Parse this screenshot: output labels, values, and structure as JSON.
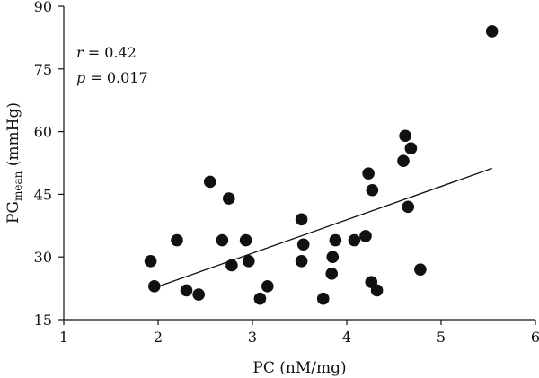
{
  "chart_data": {
    "type": "scatter",
    "xlabel": "PC (nM/mg)",
    "ylabel_main": "PG",
    "ylabel_sub": "mean",
    "ylabel_unit": " (mmHg)",
    "xlim": [
      1,
      6
    ],
    "ylim": [
      15,
      90
    ],
    "xticks": [
      1,
      2,
      3,
      4,
      5,
      6
    ],
    "yticks": [
      15,
      30,
      45,
      60,
      75,
      90
    ],
    "grid": false,
    "annotations": {
      "r_var": "r",
      "r_text": " = 0.42",
      "p_var": "p",
      "p_text": " = 0.017"
    },
    "points": [
      {
        "x": 1.92,
        "y": 29
      },
      {
        "x": 1.96,
        "y": 23
      },
      {
        "x": 2.2,
        "y": 34
      },
      {
        "x": 2.3,
        "y": 22
      },
      {
        "x": 2.43,
        "y": 21
      },
      {
        "x": 2.55,
        "y": 48
      },
      {
        "x": 2.68,
        "y": 34
      },
      {
        "x": 2.75,
        "y": 44
      },
      {
        "x": 2.78,
        "y": 28
      },
      {
        "x": 2.93,
        "y": 34
      },
      {
        "x": 2.96,
        "y": 29
      },
      {
        "x": 3.08,
        "y": 20
      },
      {
        "x": 3.16,
        "y": 23
      },
      {
        "x": 3.52,
        "y": 39
      },
      {
        "x": 3.52,
        "y": 29
      },
      {
        "x": 3.54,
        "y": 33
      },
      {
        "x": 3.75,
        "y": 20
      },
      {
        "x": 3.84,
        "y": 26
      },
      {
        "x": 3.85,
        "y": 30
      },
      {
        "x": 3.88,
        "y": 34
      },
      {
        "x": 4.08,
        "y": 34
      },
      {
        "x": 4.2,
        "y": 35
      },
      {
        "x": 4.23,
        "y": 50
      },
      {
        "x": 4.26,
        "y": 24
      },
      {
        "x": 4.27,
        "y": 46
      },
      {
        "x": 4.32,
        "y": 22
      },
      {
        "x": 4.6,
        "y": 53
      },
      {
        "x": 4.62,
        "y": 59
      },
      {
        "x": 4.65,
        "y": 42
      },
      {
        "x": 4.68,
        "y": 56
      },
      {
        "x": 4.78,
        "y": 27
      },
      {
        "x": 5.54,
        "y": 84
      }
    ],
    "regression_line": {
      "x": [
        1.96,
        5.54
      ],
      "y": [
        22.6,
        51.2
      ]
    },
    "marker_color": "#111111",
    "line_color": "#111111"
  }
}
